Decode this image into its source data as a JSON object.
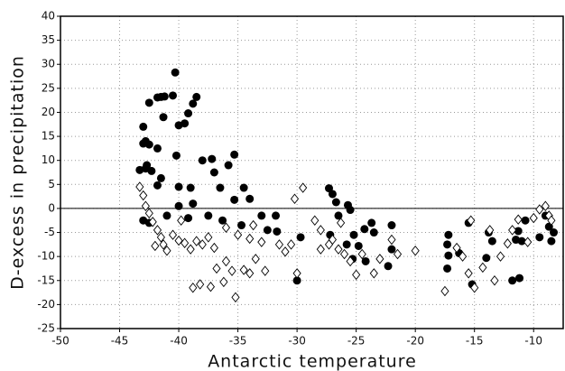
{
  "chart_data": {
    "type": "scatter",
    "x_label": "Antarctic temperature",
    "y_label": "D-excess in precipitation",
    "xlim": [
      -50,
      -7.5
    ],
    "ylim": [
      -25,
      40
    ],
    "xticks": [
      -50,
      -45,
      -40,
      -35,
      -30,
      -25,
      -20,
      -15,
      -10
    ],
    "yticks": [
      -25,
      -20,
      -15,
      -10,
      -5,
      0,
      5,
      10,
      15,
      20,
      25,
      30,
      35,
      40
    ],
    "grid": true,
    "zero_line": true,
    "series": [
      {
        "marker": "circle",
        "color": "#000000",
        "x": [
          -40.3,
          -41.5,
          -41.8,
          -41.2,
          -40.5,
          -38.5,
          -38.8,
          -42.5,
          -39.2,
          -39.5,
          -40,
          -43,
          -41.3,
          -42.8,
          -43,
          -42.5,
          -41.8,
          -40.2,
          -37.2,
          -35.3,
          -38,
          -35.8,
          -42.7,
          -43.3,
          -42.8,
          -42.3,
          -41.5,
          -37,
          -41.8,
          -40,
          -39,
          -36.5,
          -34.5,
          -35.3,
          -38.8,
          -34,
          -40,
          -37.5,
          -33,
          -31.8,
          -36.3,
          -39.2,
          -41,
          -43,
          -42.5,
          -34.7,
          -32.5,
          -31.7,
          -29.7,
          -27.3,
          -27,
          -26.7,
          -25.7,
          -25.5,
          -26.5,
          -24.3,
          -23.7,
          -25.2,
          -25.8,
          -24.8,
          -25.3,
          -27.2,
          -22,
          -22,
          -22.3,
          -23.5,
          -24.2,
          -30,
          -17.2,
          -17.3,
          -17.2,
          -17.3,
          -16.3,
          -15.5,
          -15.2,
          -14,
          -13.8,
          -13.5,
          -11.8,
          -11.2,
          -11.5,
          -11.3,
          -10.7,
          -9.5,
          -8.7,
          -8.3,
          -9,
          -8.5,
          -11
        ],
        "y": [
          28.3,
          23.2,
          23.1,
          23.3,
          23.5,
          23.2,
          21.8,
          22,
          19.8,
          17.7,
          17.3,
          17,
          19,
          14,
          13.5,
          13.3,
          12.5,
          11,
          10.3,
          11.2,
          10,
          9,
          9,
          8,
          8.3,
          7.8,
          6.3,
          7.5,
          4.8,
          4.5,
          4.3,
          4.3,
          4.3,
          1.8,
          1,
          2,
          0.5,
          -1.5,
          -1.5,
          -1.5,
          -2.5,
          -2,
          -1.5,
          -2.5,
          -3,
          -3.5,
          -4.5,
          -4.8,
          -6,
          4.2,
          3,
          1.3,
          0.7,
          -0.3,
          -1.5,
          -4.3,
          -3,
          -5.5,
          -7.5,
          -7.8,
          -10.5,
          -5.5,
          -3.5,
          -8.5,
          -12,
          -5,
          -11,
          -15,
          -5.5,
          -7.5,
          -9.8,
          -12.5,
          -9.3,
          -3,
          -15.8,
          -10.3,
          -5,
          -6.8,
          -15,
          -14.5,
          -6.5,
          -4.7,
          -2.5,
          -6,
          -3.8,
          -5,
          -1.5,
          -6.8,
          -6.8
        ]
      },
      {
        "marker": "diamond",
        "color": "#000000",
        "x": [
          -43.3,
          -43,
          -42.8,
          -42.5,
          -42.2,
          -41.8,
          -41.5,
          -41.3,
          -41,
          -40.5,
          -40,
          -39.5,
          -39,
          -38.5,
          -38,
          -37.5,
          -37,
          -36.8,
          -36,
          -35.5,
          -35.2,
          -34.5,
          -34,
          -33.5,
          -33,
          -32.7,
          -31.5,
          -31,
          -30.5,
          -30,
          -29.5,
          -30.2,
          -28.5,
          -28,
          -27,
          -26.5,
          -26,
          -25.5,
          -25,
          -24.5,
          -23.5,
          -23,
          -22,
          -20,
          -38.8,
          -38.2,
          -37.3,
          -36.2,
          -17.5,
          -16.5,
          -16,
          -15.5,
          -15,
          -14.3,
          -13.7,
          -13.3,
          -12.8,
          -12.2,
          -11.8,
          -11.3,
          -10,
          -9.5,
          -9,
          -8.7,
          -8.5,
          -10.5,
          -15.3,
          -35,
          -34,
          -36,
          -33.7,
          -39.8,
          -42,
          -27.3,
          -28,
          -26.3,
          -21.5
        ],
        "y": [
          4.5,
          2.7,
          0.5,
          -1,
          -2.8,
          -4.5,
          -6,
          -7.5,
          -8.8,
          -5.5,
          -6.7,
          -7.2,
          -8.5,
          -6.8,
          -7.5,
          -6,
          -8.2,
          -12.5,
          -11,
          -13,
          -18.5,
          -12.8,
          -13.5,
          -10.5,
          -7,
          -13,
          -7.5,
          -9,
          -7.5,
          -13.5,
          4.3,
          2,
          -2.5,
          -4.5,
          -6.5,
          -8.5,
          -9.5,
          -11,
          -13.8,
          -9.5,
          -13.5,
          -10.5,
          -6.5,
          -8.8,
          -16.5,
          -15.8,
          -16.3,
          -15.3,
          -17.2,
          -8.2,
          -10,
          -13.5,
          -16.5,
          -12.3,
          -4.5,
          -15,
          -10,
          -7.3,
          -4.5,
          -2.3,
          -2,
          -0.2,
          0.5,
          -1.5,
          -2.5,
          -7,
          -2.5,
          -5.5,
          -6.3,
          -4,
          -3.5,
          -2.5,
          -7.8,
          -7.5,
          -8.5,
          -3,
          -9.5
        ]
      }
    ]
  }
}
